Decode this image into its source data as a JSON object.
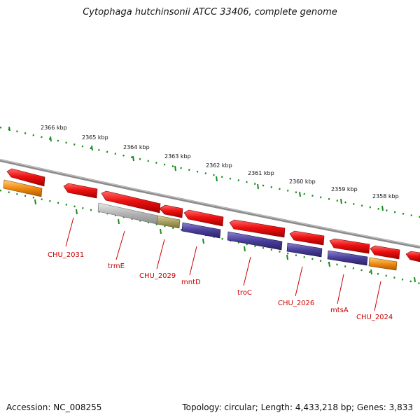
{
  "title": "Cytophaga hutchinsonii ATCC 33406, complete genome",
  "footer": {
    "accession": "Accession: NC_008255",
    "summary": "Topology: circular; Length: 4,433,218 bp; Genes: 3,833"
  },
  "colors": {
    "backbone": "#8a8a8a",
    "ticks": "#1a8a1a",
    "label": "#cc0000",
    "red_feature": "#ee1c1c",
    "orange_feature": "#f08a10",
    "blue_feature": "#4a3f9a",
    "grey_feature": "#b0b0b0",
    "olive_feature": "#a8a060"
  },
  "kbp_ticks": [
    "2366 kbp",
    "2365 kbp",
    "2364 kbp",
    "2363 kbp",
    "2362 kbp",
    "2361 kbp",
    "2360 kbp",
    "2359 kbp",
    "2358 kbp"
  ],
  "gene_labels": [
    "CHU_2031",
    "trmE",
    "CHU_2029",
    "mntD",
    "troC",
    "CHU_2026",
    "mtsA",
    "CHU_2024"
  ]
}
